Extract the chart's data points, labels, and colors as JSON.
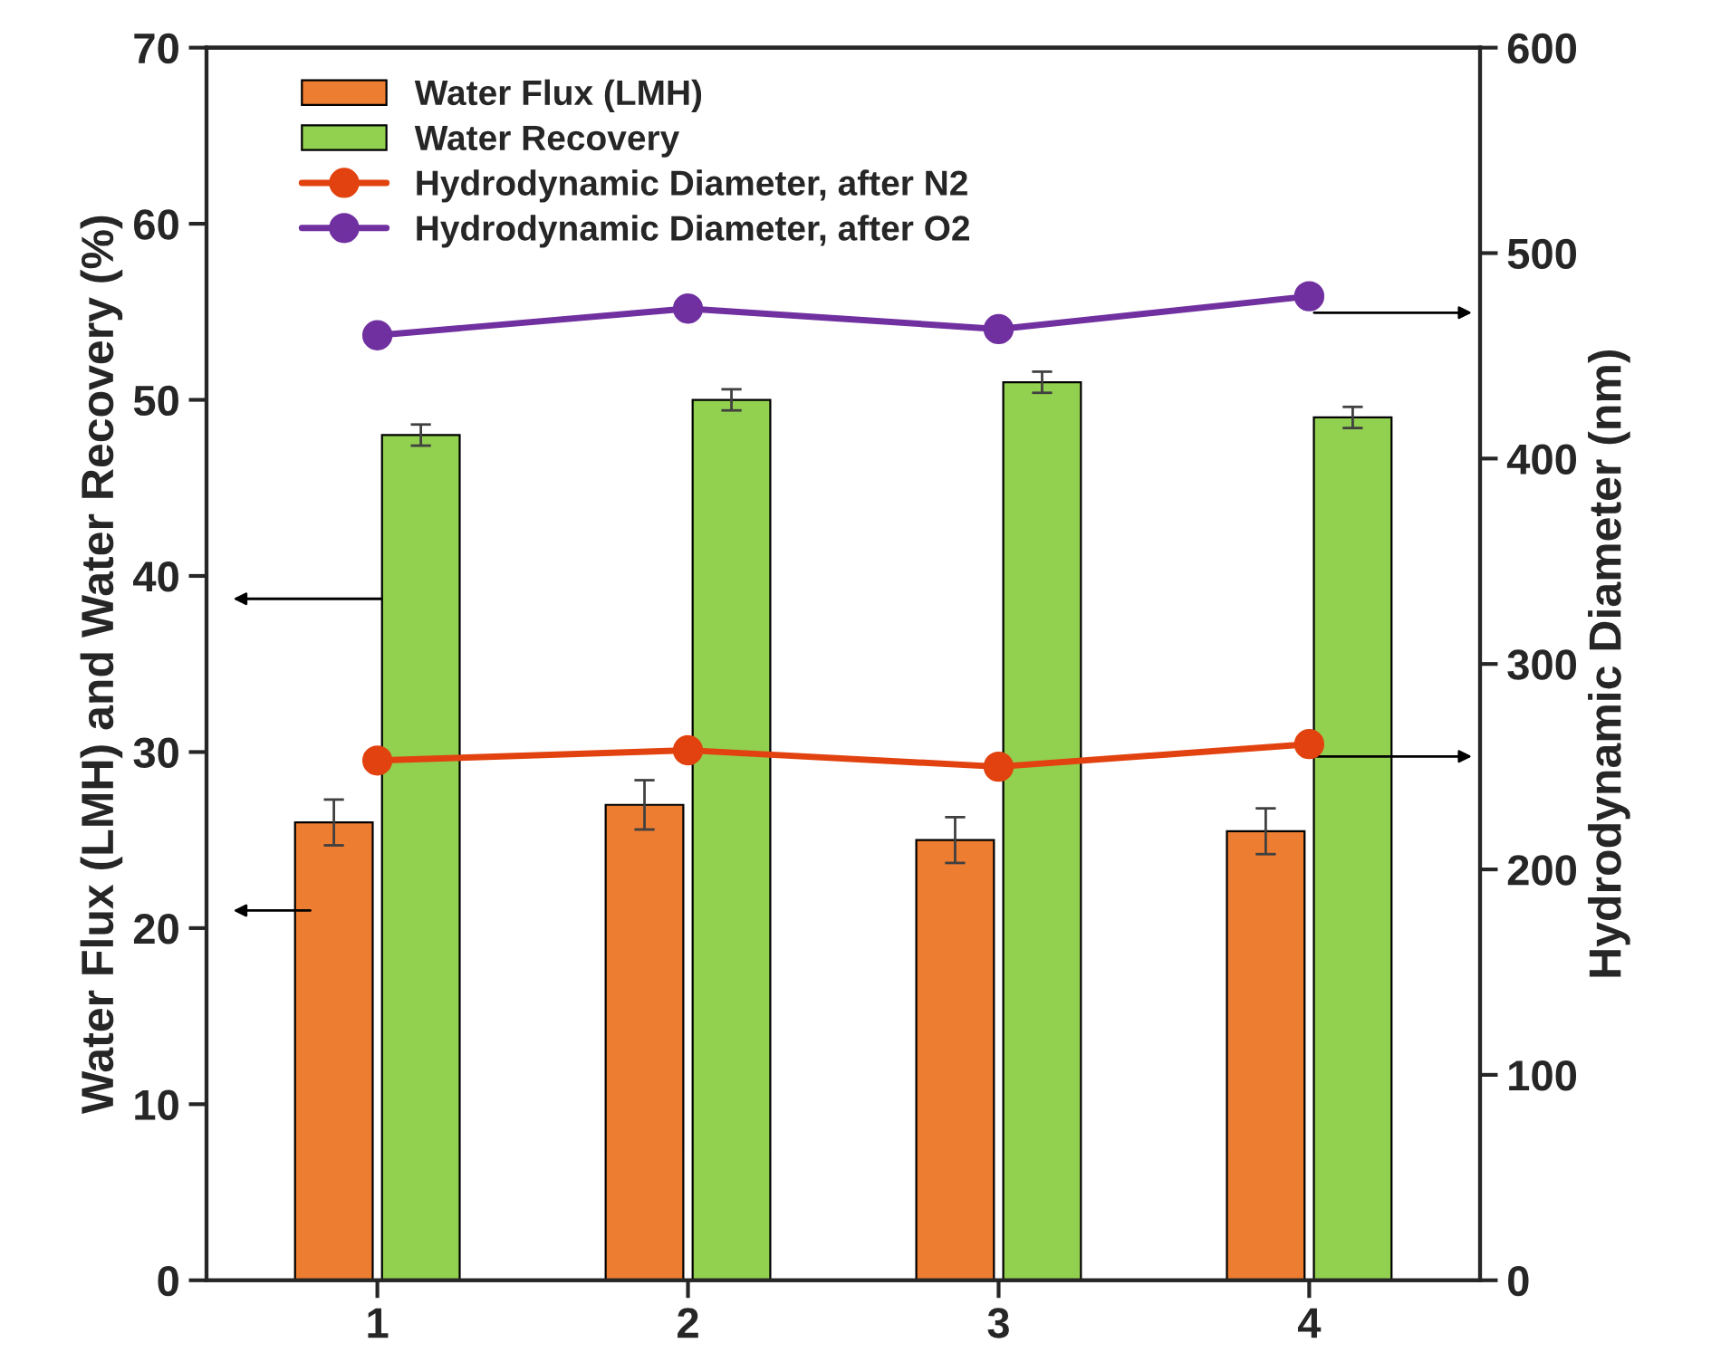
{
  "chart_data": {
    "type": "bar",
    "categories": [
      "1",
      "2",
      "3",
      "4"
    ],
    "ylabel": "Water Flux (LMH) and Water Recovery (%)",
    "y2label": "Hydrodynamic Diameter (nm)",
    "ylim": [
      0,
      70
    ],
    "yticks": [
      0,
      10,
      20,
      30,
      40,
      50,
      60,
      70
    ],
    "y2lim": [
      0,
      600
    ],
    "y2ticks": [
      0,
      100,
      200,
      300,
      400,
      500,
      600
    ],
    "series": [
      {
        "name": "Water Flux (LMH)",
        "color": "#ed7d31",
        "values": [
          26,
          27,
          25,
          25.5
        ],
        "errors": [
          1.3,
          1.4,
          1.3,
          1.3
        ]
      },
      {
        "name": "Water Recovery",
        "color": "#92d050",
        "values": [
          48,
          50,
          51,
          49
        ],
        "errors": [
          0.6,
          0.6,
          0.6,
          0.6
        ]
      },
      {
        "name": "Hydrodynamic Diameter, after N2",
        "type": "line",
        "axis": "y2",
        "color": "#e2420f",
        "values": [
          253,
          258,
          250,
          261
        ]
      },
      {
        "name": "Hydrodynamic Diameter, after O2",
        "type": "line",
        "axis": "y2",
        "color": "#7030a0",
        "values": [
          460,
          473,
          463,
          479
        ]
      }
    ],
    "marker": "circle",
    "grid": false,
    "legend": "top left"
  }
}
